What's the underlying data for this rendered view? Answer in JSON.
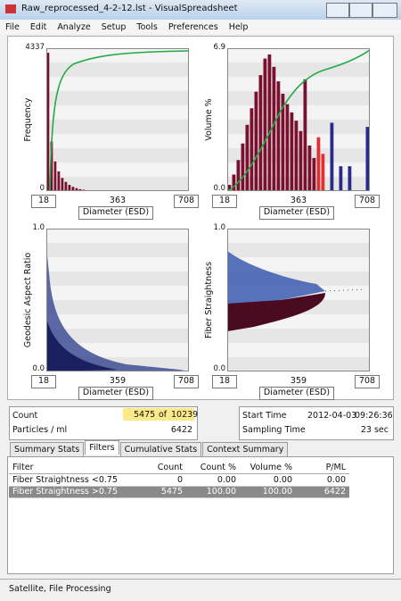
{
  "window": {
    "title": "Raw_reprocessed_4-2-12.lst - VisualSpreadsheet",
    "menu": [
      "File",
      "Edit",
      "Analyze",
      "Setup",
      "Tools",
      "Preferences",
      "Help"
    ]
  },
  "plots": [
    {
      "y_label": "Frequency",
      "y_max": "4337",
      "y_min": "0",
      "x_min": "18",
      "x_mid": "363",
      "x_max": "708",
      "x_label": "Diameter (ESD)",
      "bar_color": "#7a1030",
      "bars": [
        4200,
        1500,
        900,
        600,
        400,
        280,
        190,
        130,
        90,
        60,
        40,
        25,
        15,
        8,
        4,
        null,
        null,
        null,
        null,
        null,
        null,
        null,
        null,
        null,
        null,
        null,
        null,
        null,
        null,
        null,
        null,
        null,
        null,
        null,
        null,
        null,
        null,
        null,
        null,
        null
      ]
    },
    {
      "y_label": "Volume %",
      "y_max": "6.9",
      "y_min": "0.0",
      "x_min": "18",
      "x_mid": "363",
      "x_max": "708",
      "x_label": "Diameter (ESD)",
      "bars": [
        0.3,
        0.8,
        1.5,
        2.3,
        3.2,
        4.0,
        4.8,
        5.6,
        6.4,
        6.6,
        6.0,
        5.3,
        4.7,
        4.2,
        3.8,
        3.4,
        2.9,
        5.4,
        2.2,
        1.6,
        2.6,
        1.8,
        null,
        3.3,
        null,
        1.2,
        null,
        1.2,
        null,
        null,
        null,
        3.1
      ],
      "bar_colors": [
        "#7a1030",
        "#7a1030",
        "#7a1030",
        "#7a1030",
        "#7a1030",
        "#7a1030",
        "#7a1030",
        "#7a1030",
        "#7a1030",
        "#7a1030",
        "#7a1030",
        "#7a1030",
        "#7a1030",
        "#7a1030",
        "#7a1030",
        "#7a1030",
        "#7a1030",
        "#7a1030",
        "#7a1030",
        "#7a1030",
        "#e03030",
        "#e03030",
        "#2a2a8a",
        "#2a2a8a",
        "#2a2a8a",
        "#2a2a8a",
        "#2a2a8a",
        "#2a2a8a",
        "#2a2a8a",
        "#2a2a8a",
        "#2a2a8a",
        "#2a2a8a"
      ]
    },
    {
      "y_label": "Geodesic Aspect Ratio",
      "y_max": "1.0",
      "y_min": "0.0",
      "x_min": "18",
      "x_mid": "359",
      "x_max": "708",
      "x_label": "Diameter (ESD)"
    },
    {
      "y_label": "Fiber Straightness",
      "y_max": "1.0",
      "y_min": "0.0",
      "x_min": "18",
      "x_mid": "359",
      "x_max": "708",
      "x_label": "Diameter (ESD)"
    }
  ],
  "summary": {
    "count_label": "Count",
    "count": "5475",
    "of": "of",
    "total": "10239",
    "particles_label": "Particles / ml",
    "particles": "6422",
    "start_label": "Start Time",
    "start_date": "2012-04-03",
    "start_time": "09:26:36",
    "sampling_label": "Sampling Time",
    "sampling": "23 sec"
  },
  "tabs": [
    "Summary Stats",
    "Filters",
    "Cumulative Stats",
    "Context Summary"
  ],
  "active_tab": 1,
  "table": {
    "columns": [
      "Filter",
      "Count",
      "Count %",
      "Volume %",
      "P/ML"
    ],
    "rows": [
      [
        "Fiber Straightness <0.75",
        "0",
        "0.00",
        "0.00",
        "0.00"
      ],
      [
        "Fiber Straightness >0.75",
        "5475",
        "100.00",
        "100.00",
        "6422"
      ]
    ],
    "selected_row": 1
  },
  "status": "Satellite,  File Processing"
}
